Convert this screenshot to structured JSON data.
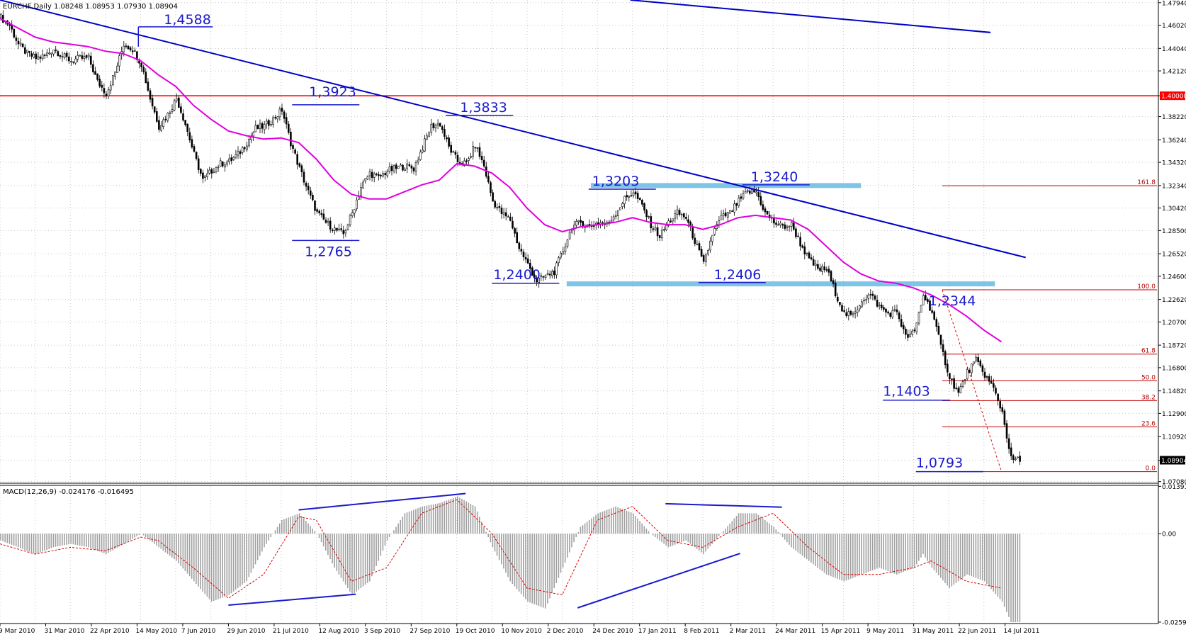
{
  "header": {
    "symbol_line": "EURCHF,Daily  1.08248 1.08953 1.07930 1.08904"
  },
  "macd_header": {
    "text": "MACD(12,26,9) -0.024176 -0.016495"
  },
  "chart_data": {
    "type": "candlestick",
    "symbol": "EURCHF",
    "timeframe": "Daily",
    "ohlc_last": {
      "open": 1.08248,
      "high": 1.08953,
      "low": 1.0793,
      "close": 1.08904
    },
    "price_axis": {
      "range": [
        1.0706,
        1.4817
      ],
      "ticks": [
        "1.47940",
        "1.46020",
        "1.44040",
        "1.42120",
        "1.40000",
        "1.38220",
        "1.36240",
        "1.34320",
        "1.32340",
        "1.30420",
        "1.28500",
        "1.26520",
        "1.24600",
        "1.22620",
        "1.20700",
        "1.18720",
        "1.16800",
        "1.14820",
        "1.12900",
        "1.10920",
        "1.08904",
        "1.07080"
      ],
      "highlighted": [
        {
          "label": "1.40000",
          "color": "#ff0000"
        },
        {
          "label": "1.08904",
          "color": "#000000"
        }
      ]
    },
    "date_axis": {
      "labels": [
        "9 Mar 2010",
        "31 Mar 2010",
        "22 Apr 2010",
        "14 May 2010",
        "7 Jun 2010",
        "29 Jun 2010",
        "21 Jul 2010",
        "12 Aug 2010",
        "3 Sep 2010",
        "27 Sep 2010",
        "19 Oct 2010",
        "10 Nov 2010",
        "2 Dec 2010",
        "24 Dec 2010",
        "17 Jan 2011",
        "8 Feb 2011",
        "2 Mar 2011",
        "24 Mar 2011",
        "15 Apr 2011",
        "9 May 2011",
        "31 May 2011",
        "22 Jun 2011",
        "14 Jul 2011"
      ]
    },
    "close_path": [
      [
        0,
        1.467
      ],
      [
        4,
        1.46
      ],
      [
        8,
        1.444
      ],
      [
        12,
        1.436
      ],
      [
        16,
        1.432
      ],
      [
        20,
        1.434
      ],
      [
        24,
        1.44
      ],
      [
        28,
        1.434
      ],
      [
        32,
        1.43
      ],
      [
        36,
        1.432
      ],
      [
        40,
        1.432
      ],
      [
        44,
        1.412
      ],
      [
        48,
        1.402
      ],
      [
        52,
        1.42
      ],
      [
        56,
        1.444
      ],
      [
        60,
        1.44
      ],
      [
        64,
        1.427
      ],
      [
        68,
        1.398
      ],
      [
        72,
        1.374
      ],
      [
        76,
        1.384
      ],
      [
        80,
        1.398
      ],
      [
        84,
        1.376
      ],
      [
        88,
        1.35
      ],
      [
        92,
        1.328
      ],
      [
        96,
        1.336
      ],
      [
        100,
        1.342
      ],
      [
        104,
        1.344
      ],
      [
        108,
        1.35
      ],
      [
        112,
        1.36
      ],
      [
        116,
        1.372
      ],
      [
        120,
        1.374
      ],
      [
        124,
        1.38
      ],
      [
        128,
        1.388
      ],
      [
        132,
        1.36
      ],
      [
        136,
        1.338
      ],
      [
        140,
        1.318
      ],
      [
        144,
        1.3
      ],
      [
        148,
        1.292
      ],
      [
        152,
        1.286
      ],
      [
        156,
        1.282
      ],
      [
        160,
        1.3
      ],
      [
        164,
        1.322
      ],
      [
        168,
        1.334
      ],
      [
        172,
        1.33
      ],
      [
        176,
        1.336
      ],
      [
        180,
        1.338
      ],
      [
        184,
        1.34
      ],
      [
        188,
        1.338
      ],
      [
        192,
        1.356
      ],
      [
        196,
        1.374
      ],
      [
        200,
        1.376
      ],
      [
        204,
        1.356
      ],
      [
        208,
        1.344
      ],
      [
        212,
        1.342
      ],
      [
        216,
        1.358
      ],
      [
        220,
        1.34
      ],
      [
        224,
        1.31
      ],
      [
        228,
        1.3
      ],
      [
        232,
        1.294
      ],
      [
        236,
        1.27
      ],
      [
        240,
        1.256
      ],
      [
        244,
        1.242
      ],
      [
        248,
        1.246
      ],
      [
        252,
        1.25
      ],
      [
        256,
        1.268
      ],
      [
        260,
        1.288
      ],
      [
        264,
        1.292
      ],
      [
        268,
        1.288
      ],
      [
        272,
        1.292
      ],
      [
        276,
        1.29
      ],
      [
        280,
        1.3
      ],
      [
        284,
        1.312
      ],
      [
        288,
        1.318
      ],
      [
        292,
        1.306
      ],
      [
        296,
        1.29
      ],
      [
        300,
        1.28
      ],
      [
        304,
        1.292
      ],
      [
        308,
        1.3
      ],
      [
        312,
        1.296
      ],
      [
        316,
        1.276
      ],
      [
        320,
        1.256
      ],
      [
        324,
        1.282
      ],
      [
        328,
        1.296
      ],
      [
        332,
        1.3
      ],
      [
        336,
        1.31
      ],
      [
        340,
        1.318
      ],
      [
        344,
        1.318
      ],
      [
        348,
        1.3
      ],
      [
        352,
        1.292
      ],
      [
        356,
        1.288
      ],
      [
        360,
        1.29
      ],
      [
        364,
        1.274
      ],
      [
        368,
        1.26
      ],
      [
        372,
        1.252
      ],
      [
        376,
        1.252
      ],
      [
        380,
        1.232
      ],
      [
        384,
        1.214
      ],
      [
        388,
        1.212
      ],
      [
        392,
        1.226
      ],
      [
        396,
        1.23
      ],
      [
        400,
        1.22
      ],
      [
        404,
        1.214
      ],
      [
        408,
        1.216
      ],
      [
        412,
        1.194
      ],
      [
        416,
        1.198
      ],
      [
        420,
        1.23
      ],
      [
        424,
        1.216
      ],
      [
        428,
        1.186
      ],
      [
        432,
        1.16
      ],
      [
        436,
        1.146
      ],
      [
        440,
        1.164
      ],
      [
        444,
        1.174
      ],
      [
        448,
        1.162
      ],
      [
        452,
        1.15
      ],
      [
        456,
        1.13
      ],
      [
        460,
        1.09
      ],
      [
        464,
        1.089
      ]
    ],
    "sma_path": [
      [
        0,
        1.466
      ],
      [
        8,
        1.458
      ],
      [
        16,
        1.45
      ],
      [
        24,
        1.446
      ],
      [
        32,
        1.444
      ],
      [
        40,
        1.442
      ],
      [
        48,
        1.438
      ],
      [
        56,
        1.436
      ],
      [
        64,
        1.43
      ],
      [
        72,
        1.418
      ],
      [
        80,
        1.408
      ],
      [
        88,
        1.392
      ],
      [
        96,
        1.38
      ],
      [
        104,
        1.37
      ],
      [
        112,
        1.366
      ],
      [
        120,
        1.363
      ],
      [
        128,
        1.364
      ],
      [
        136,
        1.36
      ],
      [
        144,
        1.346
      ],
      [
        152,
        1.328
      ],
      [
        160,
        1.316
      ],
      [
        168,
        1.312
      ],
      [
        176,
        1.312
      ],
      [
        184,
        1.318
      ],
      [
        192,
        1.324
      ],
      [
        200,
        1.328
      ],
      [
        208,
        1.342
      ],
      [
        216,
        1.34
      ],
      [
        224,
        1.334
      ],
      [
        232,
        1.322
      ],
      [
        240,
        1.304
      ],
      [
        248,
        1.29
      ],
      [
        256,
        1.284
      ],
      [
        264,
        1.288
      ],
      [
        272,
        1.29
      ],
      [
        280,
        1.292
      ],
      [
        288,
        1.296
      ],
      [
        296,
        1.292
      ],
      [
        304,
        1.29
      ],
      [
        312,
        1.29
      ],
      [
        320,
        1.286
      ],
      [
        328,
        1.29
      ],
      [
        336,
        1.296
      ],
      [
        344,
        1.298
      ],
      [
        352,
        1.296
      ],
      [
        360,
        1.294
      ],
      [
        368,
        1.286
      ],
      [
        376,
        1.272
      ],
      [
        384,
        1.258
      ],
      [
        392,
        1.248
      ],
      [
        400,
        1.242
      ],
      [
        408,
        1.24
      ],
      [
        416,
        1.236
      ],
      [
        424,
        1.23
      ],
      [
        432,
        1.222
      ],
      [
        440,
        1.212
      ],
      [
        448,
        1.2
      ],
      [
        456,
        1.19
      ]
    ],
    "trendlines": [
      {
        "from": [
          0,
          1.4817
        ],
        "to": [
          467,
          1.262
        ],
        "color": "#0000c8"
      },
      {
        "from": [
          287,
          1.4817
        ],
        "to": [
          451,
          1.454
        ],
        "color": "#0000c8"
      }
    ],
    "horizontal_levels": [
      {
        "value": 1.4,
        "color": "#ff0000"
      }
    ],
    "zones": [
      {
        "value": 1.3234,
        "from_bar": 269,
        "to_bar": 392,
        "color": "#7ec4e6"
      },
      {
        "value": 1.2395,
        "from_bar": 258,
        "to_bar": 453,
        "color": "#7ec4e6"
      }
    ],
    "swing_annotations": [
      {
        "label": "1,4588",
        "bar": 65,
        "value": 1.4588
      },
      {
        "label": "1,3923",
        "bar": 137,
        "value": 1.3923
      },
      {
        "label": "1,3833",
        "bar": 210,
        "value": 1.3833
      },
      {
        "label": "1,2765",
        "bar": 150,
        "value": 1.2765
      },
      {
        "label": "1,3203",
        "bar": 277,
        "value": 1.3203
      },
      {
        "label": "1,3240",
        "bar": 350,
        "value": 1.324
      },
      {
        "label": "1,2400",
        "bar": 230,
        "value": 1.24
      },
      {
        "label": "1,2406",
        "bar": 330,
        "value": 1.2406
      },
      {
        "label": "1,2344",
        "bar": 427,
        "value": 1.2344
      },
      {
        "label": "1,1403",
        "bar": 414,
        "value": 1.1403
      },
      {
        "label": "1,0793",
        "bar": 428,
        "value": 1.0793
      }
    ],
    "fibonacci": {
      "from_bar": 429,
      "to_bar": 509,
      "levels": [
        {
          "label": "161.8",
          "value": 1.3232
        },
        {
          "label": "100.0",
          "value": 1.2344
        },
        {
          "label": "61.8",
          "value": 1.1796
        },
        {
          "label": "50.0",
          "value": 1.1568
        },
        {
          "label": "38.2",
          "value": 1.1399
        },
        {
          "label": "23.6",
          "value": 1.1175
        },
        {
          "label": "0.0",
          "value": 1.0793
        }
      ]
    },
    "macd": {
      "params": "12,26,9",
      "main": -0.024176,
      "signal": -0.016495,
      "axis": {
        "range": [
          -0.02599,
          0.01399
        ],
        "ticks": [
          "0.013916",
          "0.00",
          "-0.02599"
        ]
      },
      "histogram_path": [
        [
          0,
          -0.002
        ],
        [
          8,
          -0.004
        ],
        [
          16,
          -0.006
        ],
        [
          24,
          -0.004
        ],
        [
          32,
          -0.003
        ],
        [
          40,
          -0.004
        ],
        [
          48,
          -0.006
        ],
        [
          56,
          -0.003
        ],
        [
          64,
          0.0
        ],
        [
          72,
          -0.004
        ],
        [
          80,
          -0.008
        ],
        [
          88,
          -0.014
        ],
        [
          96,
          -0.02
        ],
        [
          104,
          -0.018
        ],
        [
          112,
          -0.014
        ],
        [
          120,
          -0.004
        ],
        [
          128,
          0.004
        ],
        [
          136,
          0.006
        ],
        [
          144,
          0.0
        ],
        [
          152,
          -0.01
        ],
        [
          160,
          -0.018
        ],
        [
          168,
          -0.014
        ],
        [
          176,
          -0.002
        ],
        [
          184,
          0.006
        ],
        [
          192,
          0.008
        ],
        [
          200,
          0.009
        ],
        [
          208,
          0.011
        ],
        [
          216,
          0.008
        ],
        [
          224,
          -0.004
        ],
        [
          232,
          -0.014
        ],
        [
          240,
          -0.02
        ],
        [
          248,
          -0.022
        ],
        [
          256,
          -0.01
        ],
        [
          264,
          0.002
        ],
        [
          272,
          0.006
        ],
        [
          280,
          0.008
        ],
        [
          288,
          0.006
        ],
        [
          296,
          0.0
        ],
        [
          304,
          -0.004
        ],
        [
          312,
          -0.002
        ],
        [
          320,
          -0.006
        ],
        [
          328,
          0.0
        ],
        [
          336,
          0.006
        ],
        [
          344,
          0.006
        ],
        [
          352,
          0.002
        ],
        [
          360,
          -0.004
        ],
        [
          368,
          -0.008
        ],
        [
          376,
          -0.012
        ],
        [
          384,
          -0.014
        ],
        [
          392,
          -0.012
        ],
        [
          400,
          -0.01
        ],
        [
          408,
          -0.012
        ],
        [
          416,
          -0.01
        ],
        [
          420,
          -0.006
        ],
        [
          424,
          -0.01
        ],
        [
          432,
          -0.016
        ],
        [
          440,
          -0.012
        ],
        [
          448,
          -0.014
        ],
        [
          456,
          -0.02
        ],
        [
          460,
          -0.026
        ]
      ],
      "signal_path": [
        [
          0,
          -0.003
        ],
        [
          16,
          -0.006
        ],
        [
          32,
          -0.004
        ],
        [
          48,
          -0.005
        ],
        [
          64,
          -0.001
        ],
        [
          72,
          -0.002
        ],
        [
          88,
          -0.01
        ],
        [
          104,
          -0.019
        ],
        [
          120,
          -0.012
        ],
        [
          136,
          0.005
        ],
        [
          144,
          0.004
        ],
        [
          160,
          -0.014
        ],
        [
          176,
          -0.01
        ],
        [
          192,
          0.006
        ],
        [
          208,
          0.01
        ],
        [
          224,
          0.0
        ],
        [
          240,
          -0.016
        ],
        [
          256,
          -0.018
        ],
        [
          272,
          0.004
        ],
        [
          288,
          0.008
        ],
        [
          304,
          -0.002
        ],
        [
          320,
          -0.004
        ],
        [
          336,
          0.002
        ],
        [
          352,
          0.006
        ],
        [
          368,
          -0.004
        ],
        [
          384,
          -0.012
        ],
        [
          400,
          -0.012
        ],
        [
          416,
          -0.01
        ],
        [
          424,
          -0.008
        ],
        [
          440,
          -0.014
        ],
        [
          456,
          -0.016
        ]
      ],
      "divergences": [
        {
          "from": [
            104,
            -0.021
          ],
          "to": [
            162,
            -0.0178
          ]
        },
        {
          "from": [
            136,
            0.007
          ],
          "to": [
            212,
            0.0118
          ]
        },
        {
          "from": [
            263,
            -0.0218
          ],
          "to": [
            337,
            -0.0058
          ]
        },
        {
          "from": [
            303,
            0.0088
          ],
          "to": [
            356,
            0.0078
          ]
        }
      ]
    }
  }
}
